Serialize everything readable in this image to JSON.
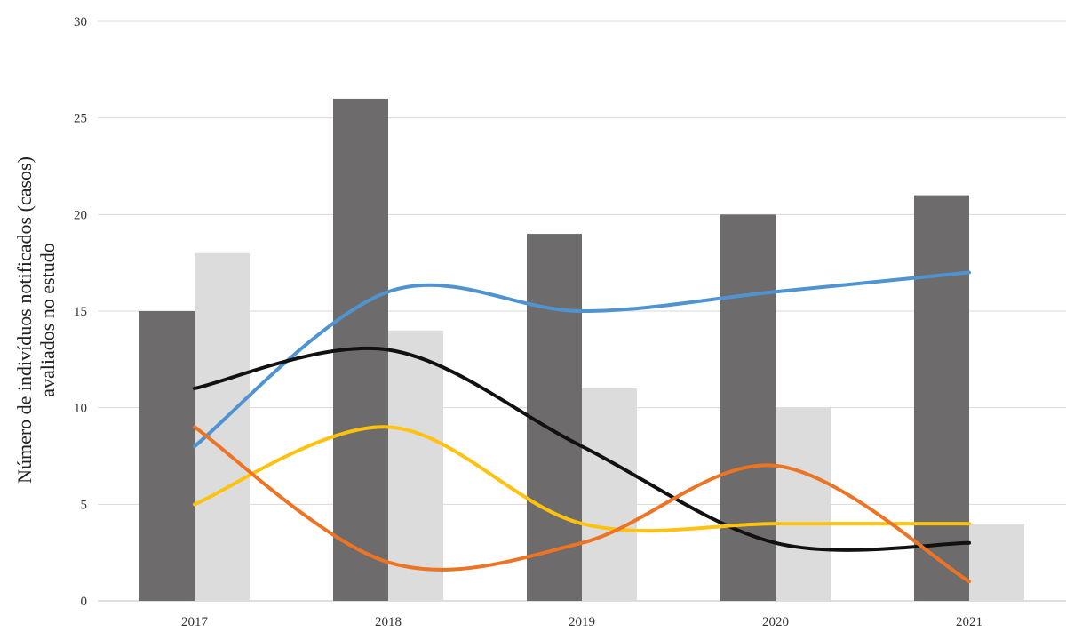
{
  "chart_data": {
    "type": "bar",
    "title": "",
    "xlabel": "",
    "ylabel_lines": [
      "Número de indivíduos notificados (casos)",
      "avaliados no estudo"
    ],
    "categories": [
      "2017",
      "2018",
      "2019",
      "2020",
      "2021"
    ],
    "ylim": [
      0,
      30
    ],
    "yticks": [
      0,
      5,
      10,
      15,
      20,
      25,
      30
    ],
    "grid": true,
    "legend": "none",
    "bar_series": [
      {
        "color": "#6d6b6b",
        "values": [
          15,
          26,
          19,
          20,
          21
        ]
      },
      {
        "color": "#dcdcdc",
        "values": [
          18,
          14,
          11,
          10,
          4
        ]
      }
    ],
    "line_series": [
      {
        "color": "#4f94d0",
        "values": [
          8,
          16,
          15,
          16,
          17
        ]
      },
      {
        "color": "#111111",
        "values": [
          11,
          13,
          8,
          3,
          3
        ]
      },
      {
        "color": "#ffc20e",
        "values": [
          5,
          9,
          4,
          4,
          4
        ]
      },
      {
        "color": "#ec7424",
        "values": [
          9,
          2,
          3,
          7,
          1
        ]
      }
    ]
  }
}
